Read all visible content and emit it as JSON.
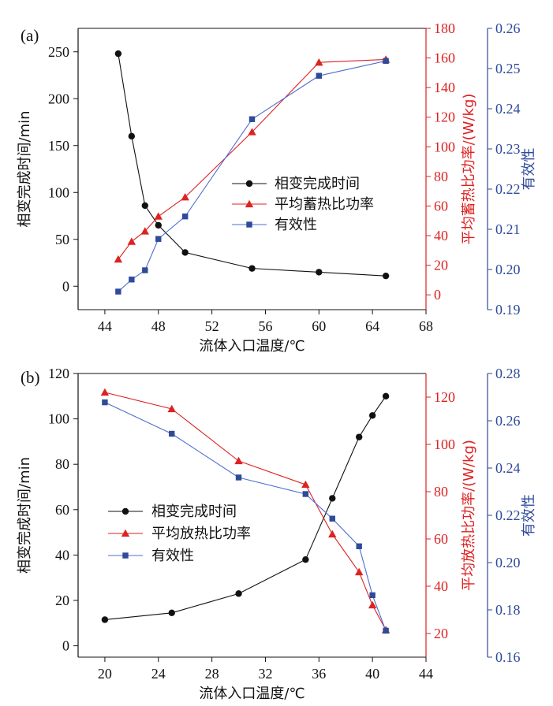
{
  "colors": {
    "black": "#111111",
    "red": "#dd2222",
    "blue": "#2e4a9a",
    "blue_light": "#4f6fd0"
  },
  "chart_data": [
    {
      "type": "line",
      "panel_label": "(a)",
      "xlabel": "流体入口温度/℃",
      "xlim": [
        42,
        68
      ],
      "xticks": [
        44,
        48,
        52,
        56,
        60,
        64,
        68
      ],
      "axes": {
        "left": {
          "label": "相变完成时间/min",
          "lim": [
            -25,
            275
          ],
          "ticks": [
            0,
            50,
            100,
            150,
            200,
            250
          ],
          "decimals": 0
        },
        "right1": {
          "label": "平均蓄热比功率/(W/kg)",
          "lim": [
            -10,
            180
          ],
          "ticks": [
            0,
            20,
            40,
            60,
            80,
            100,
            120,
            140,
            160,
            180
          ],
          "decimals": 0
        },
        "right2": {
          "label": "有效性",
          "lim": [
            0.19,
            0.26
          ],
          "ticks": [
            0.19,
            0.2,
            0.21,
            0.22,
            0.23,
            0.24,
            0.25,
            0.26
          ],
          "decimals": 2
        }
      },
      "legend_position": "middle",
      "series": [
        {
          "name": "相变完成时间",
          "axis": "left",
          "marker": "circle",
          "color": "#111111",
          "x": [
            45,
            46,
            47,
            48,
            50,
            55,
            60,
            65
          ],
          "y": [
            248,
            160,
            86,
            65,
            36,
            19,
            15,
            11
          ]
        },
        {
          "name": "平均蓄热比功率",
          "axis": "right1",
          "marker": "triangle",
          "color": "#dd2222",
          "x": [
            45,
            46,
            47,
            48,
            50,
            55,
            60,
            65
          ],
          "y": [
            24,
            36,
            43,
            53,
            66,
            110,
            157,
            159
          ]
        },
        {
          "name": "有效性",
          "axis": "right2",
          "marker": "square",
          "color": "#2e4a9a",
          "x": [
            45,
            46,
            47,
            48,
            50,
            55,
            60,
            65
          ],
          "y": [
            0.1945,
            0.1975,
            0.1998,
            0.2076,
            0.2132,
            0.2374,
            0.2482,
            0.2519
          ]
        }
      ]
    },
    {
      "type": "line",
      "panel_label": "(b)",
      "xlabel": "流体入口温度/℃",
      "xlim": [
        18,
        44
      ],
      "xticks": [
        20,
        24,
        28,
        32,
        36,
        40,
        44
      ],
      "axes": {
        "left": {
          "label": "相变完成时间/min",
          "lim": [
            -5,
            120
          ],
          "ticks": [
            0,
            20,
            40,
            60,
            80,
            100,
            120
          ],
          "decimals": 0
        },
        "right1": {
          "label": "平均放热比功率/(W/kg)",
          "lim": [
            10,
            130
          ],
          "ticks": [
            20,
            40,
            60,
            80,
            100,
            120
          ],
          "decimals": 0
        },
        "right2": {
          "label": "有效性",
          "lim": [
            0.16,
            0.28
          ],
          "ticks": [
            0.16,
            0.18,
            0.2,
            0.22,
            0.24,
            0.26,
            0.28
          ],
          "decimals": 2
        }
      },
      "legend_position": "middle-left",
      "series": [
        {
          "name": "相变完成时间",
          "axis": "left",
          "marker": "circle",
          "color": "#111111",
          "x": [
            20,
            25,
            30,
            35,
            37,
            39,
            40,
            41
          ],
          "y": [
            11.5,
            14.5,
            23,
            38,
            65,
            92,
            101.5,
            110
          ]
        },
        {
          "name": "平均放热比功率",
          "axis": "right1",
          "marker": "triangle",
          "color": "#dd2222",
          "x": [
            20,
            25,
            30,
            35,
            37,
            39,
            40,
            41
          ],
          "y": [
            122,
            115,
            93,
            83,
            62,
            46,
            32,
            21.5
          ]
        },
        {
          "name": "有效性",
          "axis": "right2",
          "marker": "square",
          "color": "#2e4a9a",
          "x": [
            20,
            25,
            30,
            35,
            37,
            39,
            40,
            41
          ],
          "y": [
            0.2678,
            0.2545,
            0.236,
            0.229,
            0.2186,
            0.2069,
            0.1862,
            0.1712
          ]
        }
      ]
    }
  ]
}
